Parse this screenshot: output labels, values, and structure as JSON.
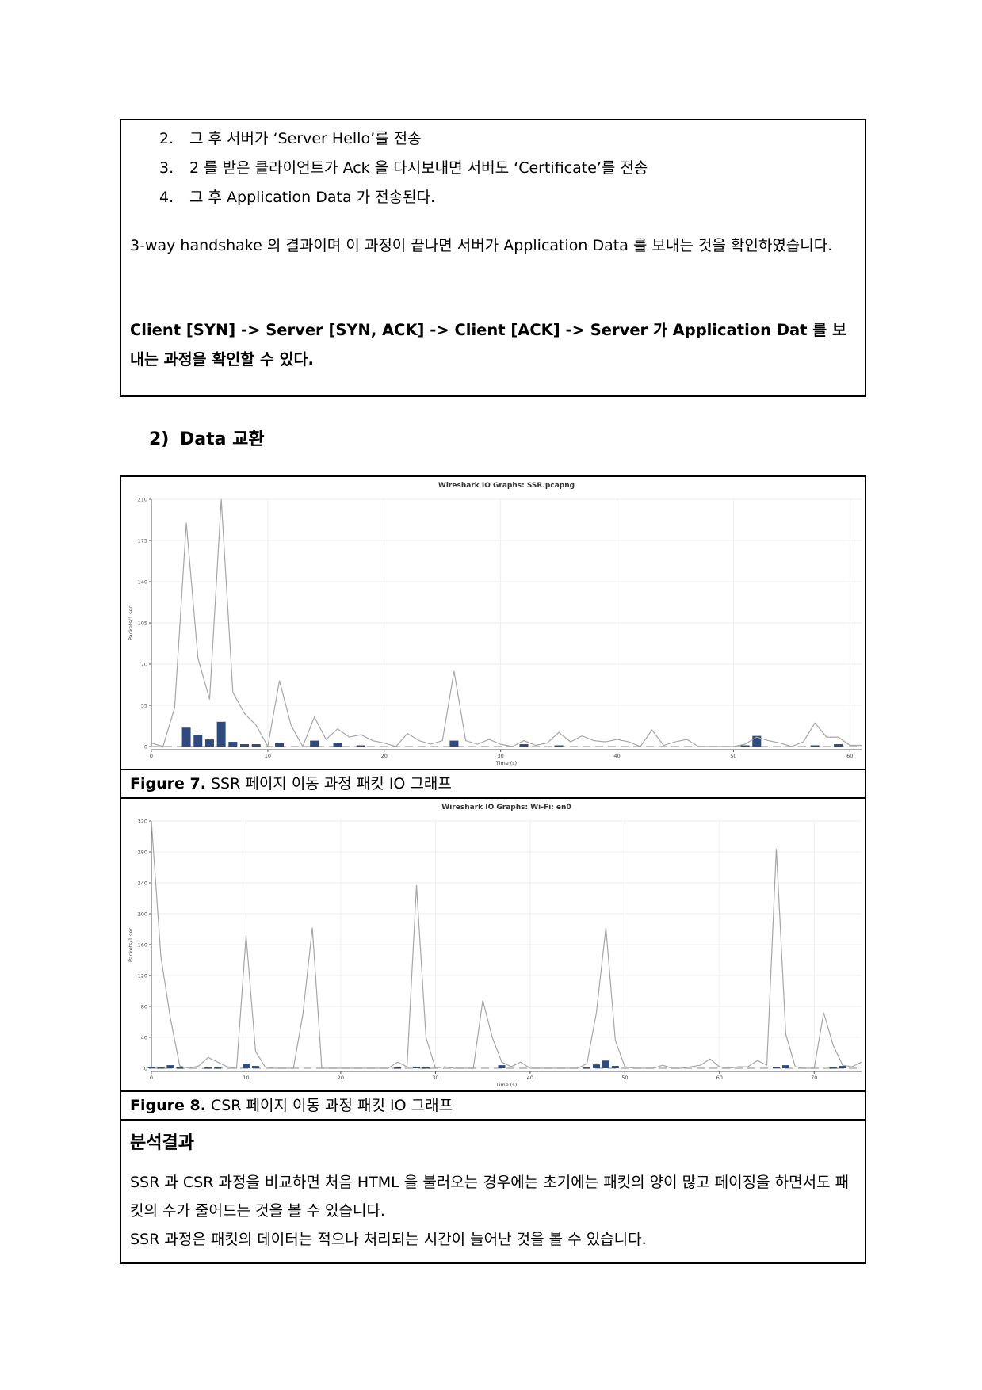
{
  "box1": {
    "steps": [
      {
        "num": "2.",
        "text": "그 후 서버가 ‘Server Hello’를 전송"
      },
      {
        "num": "3.",
        "text": "2 를 받은 클라이언트가 Ack 을 다시보내면 서버도 ‘Certificate’를 전송"
      },
      {
        "num": "4.",
        "text": "그 후 Application Data 가 전송된다."
      }
    ],
    "paragraph": "3-way handshake 의 결과이며 이 과정이 끝나면 서버가 Application Data 를 보내는 것을 확인하였습니다.",
    "bold_paragraph": "Client [SYN] -> Server [SYN, ACK] -> Client [ACK] -> Server 가 Application Dat 를 보내는 과정을 확인할 수 있다."
  },
  "section": {
    "num": "2)",
    "title": "Data 교환"
  },
  "chart_data": [
    {
      "type": "line",
      "title": "Wireshark IO Graphs: SSR.pcapng",
      "xlabel": "Time (s)",
      "ylabel": "Packets/1 sec",
      "xlim": [
        0,
        61
      ],
      "ylim": [
        0,
        210
      ],
      "xticks": [
        0,
        10,
        20,
        30,
        40,
        50,
        60
      ],
      "yticks": [
        0,
        35,
        70,
        105,
        140,
        175,
        210
      ],
      "grid": true,
      "series": [
        {
          "kind": "line",
          "color": "#a6a6a6",
          "x": [
            0,
            1,
            2,
            3,
            4,
            5,
            6,
            7,
            8,
            9,
            10,
            11,
            12,
            13,
            14,
            15,
            16,
            17,
            18,
            19,
            20,
            21,
            22,
            23,
            24,
            25,
            26,
            27,
            28,
            29,
            30,
            31,
            32,
            33,
            34,
            35,
            36,
            37,
            38,
            39,
            40,
            41,
            42,
            43,
            44,
            45,
            46,
            47,
            48,
            49,
            50,
            51,
            52,
            53,
            54,
            55,
            56,
            57,
            58,
            59,
            60,
            61
          ],
          "y": [
            3,
            0,
            33,
            190,
            75,
            40,
            210,
            46,
            28,
            18,
            0,
            56,
            18,
            0,
            25,
            6,
            15,
            8,
            10,
            5,
            3,
            0,
            11,
            5,
            2,
            5,
            64,
            5,
            2,
            6,
            2,
            0,
            5,
            1,
            3,
            12,
            4,
            9,
            5,
            4,
            6,
            4,
            0,
            14,
            1,
            4,
            6,
            0,
            0,
            0,
            0,
            2,
            8,
            5,
            3,
            0,
            4,
            20,
            8,
            8,
            1,
            1
          ]
        },
        {
          "kind": "bar",
          "color": "#2f4a7f",
          "x": [
            3,
            4,
            5,
            6,
            7,
            8,
            9,
            11,
            14,
            16,
            18,
            26,
            32,
            35,
            51,
            52,
            57,
            59
          ],
          "y": [
            16,
            10,
            6,
            21,
            4,
            2,
            2,
            3,
            5,
            3,
            1,
            5,
            2,
            1,
            1,
            9,
            1,
            2
          ]
        },
        {
          "kind": "dashed",
          "color": "#b0b0b0",
          "y": 0
        }
      ]
    },
    {
      "type": "line",
      "title": "Wireshark IO Graphs: Wi-Fi: en0",
      "xlabel": "Time (s)",
      "ylabel": "Packets/1 sec",
      "xlim": [
        0,
        75
      ],
      "ylim": [
        0,
        320
      ],
      "xticks": [
        0,
        10,
        20,
        30,
        40,
        50,
        60,
        70
      ],
      "yticks": [
        0,
        40,
        80,
        120,
        160,
        200,
        240,
        280,
        320
      ],
      "grid": true,
      "series": [
        {
          "kind": "line",
          "color": "#a6a6a6",
          "x": [
            0,
            1,
            2,
            3,
            4,
            5,
            6,
            7,
            8,
            9,
            10,
            11,
            12,
            13,
            14,
            15,
            16,
            17,
            18,
            19,
            20,
            21,
            22,
            23,
            24,
            25,
            26,
            27,
            28,
            29,
            30,
            31,
            32,
            33,
            34,
            35,
            36,
            37,
            38,
            39,
            40,
            41,
            42,
            43,
            44,
            45,
            46,
            47,
            48,
            49,
            50,
            51,
            52,
            53,
            54,
            55,
            56,
            57,
            58,
            59,
            60,
            61,
            62,
            63,
            64,
            65,
            66,
            67,
            68,
            69,
            70,
            71,
            72,
            73,
            74,
            75
          ],
          "y": [
            320,
            145,
            65,
            3,
            0,
            3,
            14,
            8,
            2,
            0,
            172,
            22,
            2,
            0,
            0,
            0,
            70,
            182,
            0,
            0,
            0,
            0,
            0,
            0,
            0,
            0,
            8,
            2,
            237,
            40,
            0,
            2,
            0,
            0,
            0,
            88,
            40,
            8,
            2,
            8,
            0,
            0,
            0,
            0,
            0,
            0,
            6,
            72,
            182,
            36,
            2,
            0,
            0,
            0,
            4,
            0,
            0,
            2,
            4,
            12,
            2,
            0,
            2,
            2,
            10,
            4,
            284,
            44,
            2,
            0,
            0,
            72,
            30,
            4,
            2,
            8
          ]
        },
        {
          "kind": "bar",
          "color": "#2f4a7f",
          "x": [
            0,
            1,
            2,
            3,
            6,
            7,
            10,
            11,
            26,
            28,
            29,
            37,
            46,
            47,
            48,
            49,
            66,
            67,
            72,
            73
          ],
          "y": [
            2,
            1,
            4,
            1,
            1,
            1,
            6,
            3,
            1,
            2,
            1,
            4,
            1,
            5,
            10,
            3,
            2,
            4,
            1,
            3
          ]
        },
        {
          "kind": "dashed",
          "color": "#b0b0b0",
          "y": 0
        }
      ]
    }
  ],
  "figures": [
    {
      "label": "Figure 7.",
      "caption": "SSR 페이지 이동 과정 패킷 IO 그래프"
    },
    {
      "label": "Figure 8.",
      "caption": "CSR 페이지 이동 과정 패킷 IO 그래프"
    }
  ],
  "analysis": {
    "title": "분석결과",
    "lines": [
      "SSR 과 CSR 과정을 비교하면 처음 HTML 을 불러오는 경우에는 초기에는 패킷의 양이 많고 페이징을 하면서도 패킷의 수가 줄어드는 것을 볼 수 있습니다.",
      "SSR 과정은 패킷의 데이터는 적으나 처리되는 시간이 늘어난 것을 볼 수 있습니다."
    ]
  }
}
